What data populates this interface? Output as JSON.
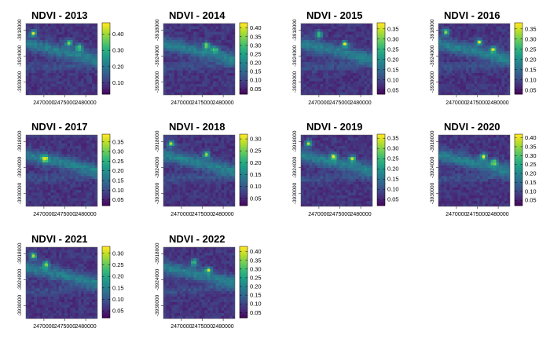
{
  "chart_data": [
    {
      "type": "heatmap",
      "title": "NDVI - 2013",
      "x_ticks": [
        "2470000",
        "2475000",
        "2480000"
      ],
      "y_ticks": [
        "-3918000",
        "-3924000",
        "-3930000"
      ],
      "legend_ticks": [
        "0.10",
        "0.20",
        "0.30",
        "0.40"
      ],
      "value_range": [
        0.03,
        0.47
      ],
      "colormap": "viridis",
      "hotspots": [
        {
          "x": 2467500,
          "y": -3918800,
          "v": 0.45
        },
        {
          "x": 2476000,
          "y": -3921000,
          "v": 0.38
        },
        {
          "x": 2478500,
          "y": -3922000,
          "v": 0.33
        }
      ]
    },
    {
      "type": "heatmap",
      "title": "NDVI - 2014",
      "x_ticks": [
        "2470000",
        "2475000",
        "2480000"
      ],
      "y_ticks": [
        "-3918000",
        "-3924000",
        "-3930000"
      ],
      "legend_ticks": [
        "0.05",
        "0.10",
        "0.15",
        "0.20",
        "0.25",
        "0.30",
        "0.35",
        "0.40"
      ],
      "value_range": [
        0.02,
        0.43
      ],
      "colormap": "viridis",
      "hotspots": [
        {
          "x": 2476000,
          "y": -3921500,
          "v": 0.33
        },
        {
          "x": 2478000,
          "y": -3922500,
          "v": 0.28
        }
      ]
    },
    {
      "type": "heatmap",
      "title": "NDVI - 2015",
      "x_ticks": [
        "2470000",
        "2475000",
        "2480000"
      ],
      "y_ticks": [
        "-3918000",
        "-3924000",
        "-3930000"
      ],
      "legend_ticks": [
        "0.05",
        "0.10",
        "0.15",
        "0.20",
        "0.25",
        "0.30",
        "0.35"
      ],
      "value_range": [
        0.03,
        0.38
      ],
      "colormap": "viridis",
      "hotspots": [
        {
          "x": 2476200,
          "y": -3921200,
          "v": 0.37
        },
        {
          "x": 2470000,
          "y": -3919000,
          "v": 0.26
        }
      ]
    },
    {
      "type": "heatmap",
      "title": "NDVI - 2016",
      "x_ticks": [
        "2470000",
        "2475000",
        "2480000"
      ],
      "y_ticks": [
        "-3918000",
        "-3924000",
        "-3930000"
      ],
      "legend_ticks": [
        "0.05",
        "0.10",
        "0.15",
        "0.20",
        "0.25",
        "0.30",
        "0.35"
      ],
      "value_range": [
        0.03,
        0.38
      ],
      "colormap": "viridis",
      "hotspots": [
        {
          "x": 2467500,
          "y": -3918500,
          "v": 0.32
        },
        {
          "x": 2475500,
          "y": -3920800,
          "v": 0.37
        },
        {
          "x": 2478800,
          "y": -3922500,
          "v": 0.36
        }
      ]
    },
    {
      "type": "heatmap",
      "title": "NDVI - 2017",
      "x_ticks": [
        "2470000",
        "2475000",
        "2480000"
      ],
      "y_ticks": [
        "-3918000",
        "-3924000",
        "-3930000"
      ],
      "legend_ticks": [
        "0.05",
        "0.10",
        "0.15",
        "0.20",
        "0.25",
        "0.30",
        "0.35"
      ],
      "value_range": [
        0.02,
        0.39
      ],
      "colormap": "viridis",
      "hotspots": [
        {
          "x": 2470200,
          "y": -3922000,
          "v": 0.37
        }
      ]
    },
    {
      "type": "heatmap",
      "title": "NDVI - 2018",
      "x_ticks": [
        "2470000",
        "2475000",
        "2480000"
      ],
      "y_ticks": [
        "-3918000",
        "-3924000",
        "-3930000"
      ],
      "legend_ticks": [
        "0.05",
        "0.10",
        "0.15",
        "0.20",
        "0.25",
        "0.30"
      ],
      "value_range": [
        0.02,
        0.32
      ],
      "colormap": "viridis",
      "hotspots": [
        {
          "x": 2467500,
          "y": -3918500,
          "v": 0.29
        },
        {
          "x": 2476000,
          "y": -3921000,
          "v": 0.27
        }
      ]
    },
    {
      "type": "heatmap",
      "title": "NDVI - 2019",
      "x_ticks": [
        "2470000",
        "2475000",
        "2480000"
      ],
      "y_ticks": [
        "-3918000",
        "-3924000",
        "-3930000"
      ],
      "legend_ticks": [
        "0.05",
        "0.10",
        "0.15",
        "0.20",
        "0.25",
        "0.30",
        "0.35"
      ],
      "value_range": [
        0.02,
        0.37
      ],
      "colormap": "viridis",
      "hotspots": [
        {
          "x": 2467500,
          "y": -3918500,
          "v": 0.33
        },
        {
          "x": 2473500,
          "y": -3921500,
          "v": 0.36
        },
        {
          "x": 2478000,
          "y": -3922000,
          "v": 0.34
        }
      ]
    },
    {
      "type": "heatmap",
      "title": "NDVI - 2020",
      "x_ticks": [
        "2470000",
        "2475000",
        "2480000"
      ],
      "y_ticks": [
        "-3918000",
        "-3924000",
        "-3930000"
      ],
      "legend_ticks": [
        "0.05",
        "0.10",
        "0.15",
        "0.20",
        "0.25",
        "0.30",
        "0.35",
        "0.40"
      ],
      "value_range": [
        0.02,
        0.42
      ],
      "colormap": "viridis",
      "hotspots": [
        {
          "x": 2476500,
          "y": -3921500,
          "v": 0.41
        },
        {
          "x": 2479000,
          "y": -3922800,
          "v": 0.3
        }
      ]
    },
    {
      "type": "heatmap",
      "title": "NDVI - 2021",
      "x_ticks": [
        "2470000",
        "2475000",
        "2480000"
      ],
      "y_ticks": [
        "-3918000",
        "-3924000",
        "-3930000"
      ],
      "legend_ticks": [
        "0.05",
        "0.10",
        "0.15",
        "0.20",
        "0.25",
        "0.30"
      ],
      "value_range": [
        0.02,
        0.33
      ],
      "colormap": "viridis",
      "hotspots": [
        {
          "x": 2467500,
          "y": -3918500,
          "v": 0.29
        },
        {
          "x": 2470500,
          "y": -3920500,
          "v": 0.27
        }
      ]
    },
    {
      "type": "heatmap",
      "title": "NDVI - 2022",
      "x_ticks": [
        "2470000",
        "2475000",
        "2480000"
      ],
      "y_ticks": [
        "-3918000",
        "-3924000",
        "-3930000"
      ],
      "legend_ticks": [
        "0.05",
        "0.10",
        "0.15",
        "0.20",
        "0.25",
        "0.30",
        "0.35",
        "0.40"
      ],
      "value_range": [
        0.02,
        0.43
      ],
      "colormap": "viridis",
      "hotspots": [
        {
          "x": 2476500,
          "y": -3921800,
          "v": 0.4
        },
        {
          "x": 2473000,
          "y": -3920000,
          "v": 0.28
        }
      ]
    }
  ]
}
